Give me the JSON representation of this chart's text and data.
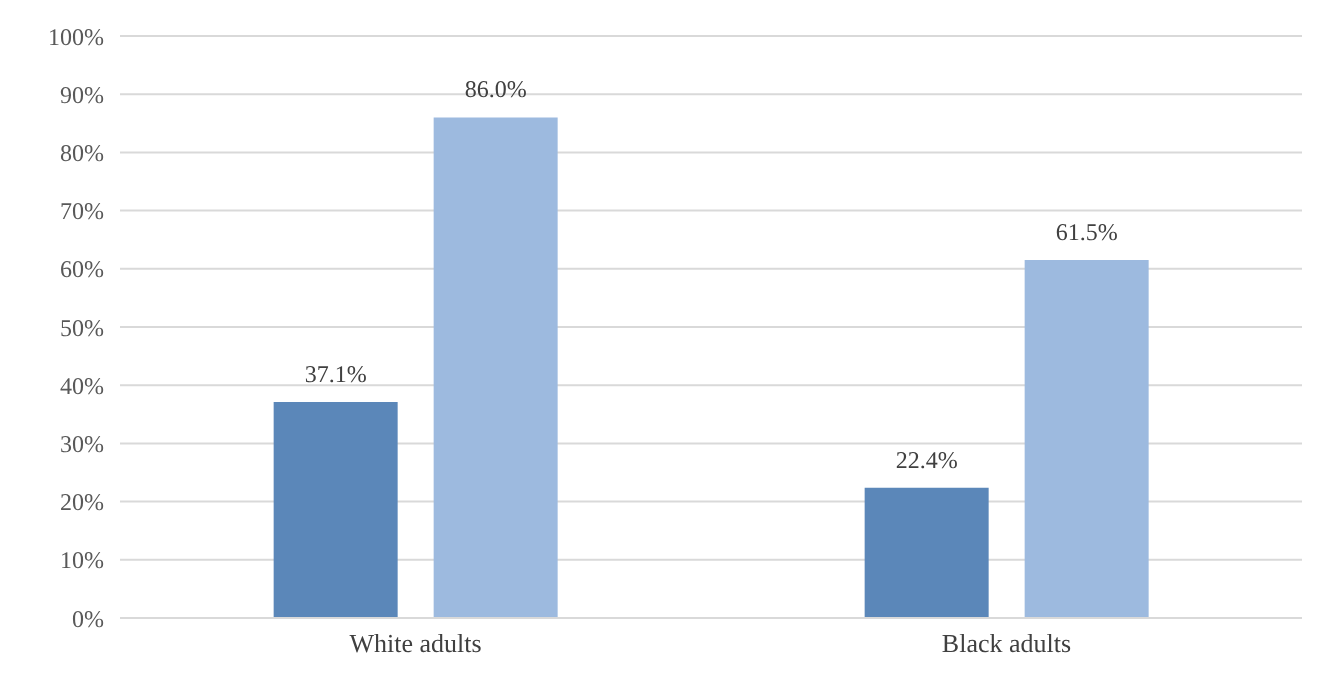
{
  "chart_data": {
    "type": "bar",
    "categories": [
      "White adults",
      "Black adults"
    ],
    "series": [
      {
        "color": "#5b87b9",
        "values": [
          37.1,
          22.4
        ]
      },
      {
        "color": "#9dbadf",
        "values": [
          86.0,
          61.5
        ]
      }
    ],
    "ylim": [
      0,
      100
    ],
    "yticks": [
      {
        "value": 0,
        "label": "0%"
      },
      {
        "value": 10,
        "label": "10%"
      },
      {
        "value": 20,
        "label": "20%"
      },
      {
        "value": 30,
        "label": "30%"
      },
      {
        "value": 40,
        "label": "40%"
      },
      {
        "value": 50,
        "label": "50%"
      },
      {
        "value": 60,
        "label": "60%"
      },
      {
        "value": 70,
        "label": "70%"
      },
      {
        "value": 80,
        "label": "80%"
      },
      {
        "value": 90,
        "label": "90%"
      },
      {
        "value": 100,
        "label": "100%"
      }
    ],
    "value_labels": [
      [
        "37.1%",
        "22.4%"
      ],
      [
        "86.0%",
        "61.5%"
      ]
    ],
    "grid": "y",
    "legend": false
  }
}
